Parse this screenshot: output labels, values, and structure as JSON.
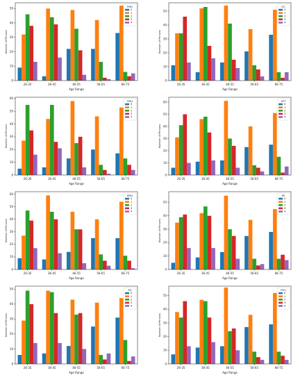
{
  "chart_data": [
    {
      "type": "bar",
      "title": "",
      "xlabel": "Age Range",
      "ylabel": "Number of Persons",
      "legend_title": "FMU",
      "legend_position": "top-right",
      "categories": [
        "26-35",
        "36-45",
        "46-55",
        "56-65",
        "66-75"
      ],
      "ylim": [
        0,
        54
      ],
      "yticks": [
        0,
        10,
        20,
        30,
        40,
        50
      ],
      "series": [
        {
          "name": "0",
          "values": [
            9,
            3,
            22,
            22,
            33
          ]
        },
        {
          "name": "1",
          "values": [
            32,
            50,
            49,
            42,
            52
          ]
        },
        {
          "name": "2",
          "values": [
            46,
            44,
            36,
            13,
            6
          ]
        },
        {
          "name": "3",
          "values": [
            38,
            39,
            21,
            2,
            3
          ]
        },
        {
          "name": "4",
          "values": [
            13,
            16,
            4,
            1,
            5
          ]
        }
      ]
    },
    {
      "type": "bar",
      "title": "",
      "xlabel": "Age Range",
      "ylabel": "Number of Persons",
      "legend_title": "OC",
      "legend_position": "top-right",
      "categories": [
        "26-35",
        "36-45",
        "46-55",
        "56-65",
        "66-75"
      ],
      "ylim": [
        0,
        56
      ],
      "yticks": [
        0,
        10,
        20,
        30,
        40,
        50
      ],
      "series": [
        {
          "name": "0",
          "values": [
            11,
            6,
            13,
            21,
            33
          ]
        },
        {
          "name": "1",
          "values": [
            34,
            52,
            54,
            37,
            51
          ]
        },
        {
          "name": "2",
          "values": [
            34,
            53,
            41,
            11,
            6
          ]
        },
        {
          "name": "3",
          "values": [
            46,
            25,
            15,
            8,
            2
          ]
        },
        {
          "name": "4",
          "values": [
            13,
            16,
            9,
            3,
            6
          ]
        }
      ]
    },
    {
      "type": "bar",
      "title": "",
      "xlabel": "Age Range",
      "ylabel": "Number of Persons",
      "legend_title": "FMU",
      "legend_position": "top-right",
      "categories": [
        "26-35",
        "36-45",
        "46-55",
        "56-65",
        "66-75"
      ],
      "ylim": [
        0,
        61
      ],
      "yticks": [
        0,
        10,
        20,
        30,
        40,
        50,
        60
      ],
      "series": [
        {
          "name": "0",
          "values": [
            5,
            6,
            13,
            20,
            17
          ]
        },
        {
          "name": "1",
          "values": [
            27,
            44,
            58,
            46,
            53
          ]
        },
        {
          "name": "2",
          "values": [
            55,
            55,
            25,
            8,
            13
          ]
        },
        {
          "name": "3",
          "values": [
            35,
            26,
            30,
            4,
            8
          ]
        },
        {
          "name": "4",
          "values": [
            16,
            21,
            6,
            1,
            4
          ]
        }
      ]
    },
    {
      "type": "bar",
      "title": "",
      "xlabel": "Age Range",
      "ylabel": "Number of Persons",
      "legend_title": "ATT",
      "legend_position": "top-right",
      "categories": [
        "26-35",
        "36-45",
        "46-55",
        "56-65",
        "66-75"
      ],
      "ylim": [
        0,
        64
      ],
      "yticks": [
        0,
        10,
        20,
        30,
        40,
        50,
        60
      ],
      "series": [
        {
          "name": "0",
          "values": [
            6,
            11,
            12,
            23,
            25
          ]
        },
        {
          "name": "1",
          "values": [
            31,
            46,
            61,
            40,
            51
          ]
        },
        {
          "name": "2",
          "values": [
            41,
            48,
            30,
            8,
            15
          ]
        },
        {
          "name": "3",
          "values": [
            50,
            35,
            24,
            6,
            2
          ]
        },
        {
          "name": "4",
          "values": [
            10,
            12,
            6,
            3,
            7
          ]
        }
      ]
    },
    {
      "type": "bar",
      "title": "",
      "xlabel": "Age Range",
      "ylabel": "Number of Persons",
      "legend_title": "SMU",
      "legend_position": "top-right",
      "categories": [
        "26-35",
        "36-45",
        "46-55",
        "56-65",
        "66-75"
      ],
      "ylim": [
        0,
        62
      ],
      "yticks": [
        0,
        10,
        20,
        30,
        40,
        50,
        60
      ],
      "series": [
        {
          "name": "0",
          "values": [
            9,
            8,
            14,
            25,
            25
          ]
        },
        {
          "name": "1",
          "values": [
            27,
            59,
            46,
            40,
            54
          ]
        },
        {
          "name": "2",
          "values": [
            47,
            46,
            32,
            12,
            11
          ]
        },
        {
          "name": "3",
          "values": [
            39,
            40,
            32,
            7,
            7
          ]
        },
        {
          "name": "4",
          "values": [
            17,
            13,
            5,
            3,
            1
          ]
        }
      ]
    },
    {
      "type": "bar",
      "title": "",
      "xlabel": "Age Range",
      "ylabel": "Number of Persons",
      "legend_title": "PE",
      "legend_position": "top-right",
      "categories": [
        "26-35",
        "36-45",
        "46-55",
        "56-65",
        "66-75"
      ],
      "ylim": [
        0,
        58
      ],
      "yticks": [
        0,
        10,
        20,
        30,
        40,
        50
      ],
      "series": [
        {
          "name": "0",
          "values": [
            5,
            9,
            13,
            25,
            28
          ]
        },
        {
          "name": "1",
          "values": [
            35,
            42,
            55,
            37,
            45
          ]
        },
        {
          "name": "2",
          "values": [
            39,
            47,
            30,
            8,
            8
          ]
        },
        {
          "name": "3",
          "values": [
            41,
            40,
            25,
            3,
            11
          ]
        },
        {
          "name": "4",
          "values": [
            16,
            16,
            8,
            4,
            7
          ]
        }
      ]
    },
    {
      "type": "bar",
      "title": "",
      "xlabel": "Age Range",
      "ylabel": "Number of Persons",
      "legend_title": "PU",
      "legend_position": "top-right",
      "categories": [
        "26-35",
        "36-45",
        "46-55",
        "56-65",
        "66-75"
      ],
      "ylim": [
        0,
        52
      ],
      "yticks": [
        0,
        10,
        20,
        30,
        40,
        50
      ],
      "series": [
        {
          "name": "0",
          "values": [
            6,
            7,
            12,
            25,
            31
          ]
        },
        {
          "name": "1",
          "values": [
            29,
            49,
            43,
            41,
            44
          ]
        },
        {
          "name": "2",
          "values": [
            49,
            48,
            33,
            6,
            16
          ]
        },
        {
          "name": "3",
          "values": [
            40,
            34,
            34,
            3,
            2
          ]
        },
        {
          "name": "4",
          "values": [
            14,
            14,
            10,
            7,
            5
          ]
        }
      ]
    },
    {
      "type": "bar",
      "title": "",
      "xlabel": "Age Range",
      "ylabel": "Number of Persons",
      "legend_title": "PEU",
      "legend_position": "top-right",
      "categories": [
        "26-35",
        "36-45",
        "46-55",
        "56-65",
        "66-75"
      ],
      "ylim": [
        0,
        57
      ],
      "yticks": [
        0,
        10,
        20,
        30,
        40,
        50
      ],
      "series": [
        {
          "name": "0",
          "values": [
            7,
            12,
            13,
            27,
            29
          ]
        },
        {
          "name": "1",
          "values": [
            38,
            47,
            56,
            36,
            52
          ]
        },
        {
          "name": "2",
          "values": [
            34,
            46,
            24,
            9,
            9
          ]
        },
        {
          "name": "3",
          "values": [
            46,
            34,
            26,
            5,
            6
          ]
        },
        {
          "name": "4",
          "values": [
            13,
            16,
            10,
            3,
            3
          ]
        }
      ]
    }
  ],
  "series_colors": [
    "#1f77b4",
    "#ff7f0e",
    "#2ca02c",
    "#d62728",
    "#9467bd"
  ]
}
